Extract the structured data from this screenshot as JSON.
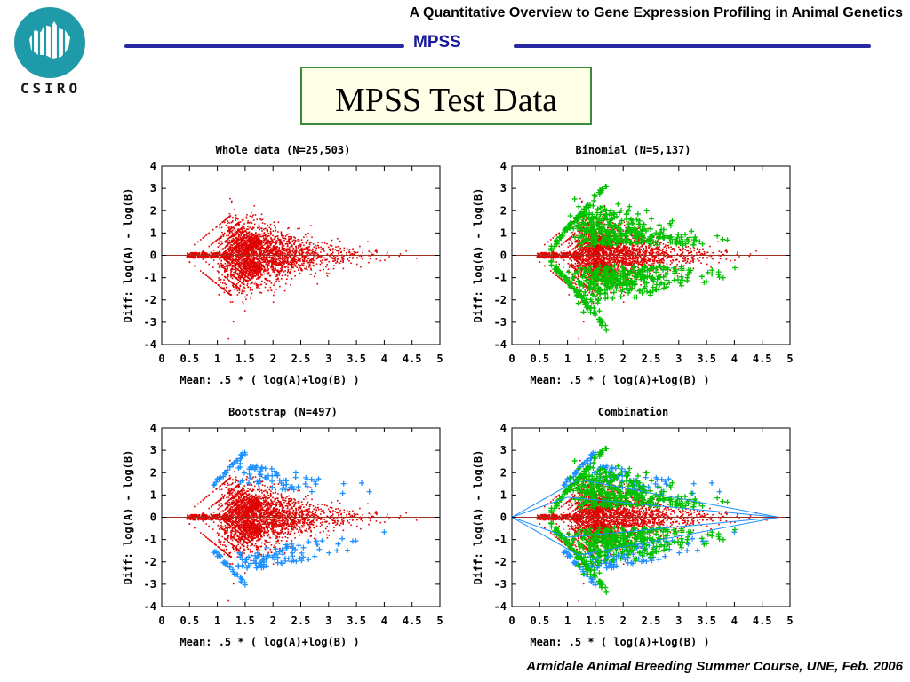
{
  "header": {
    "course_title": "A Quantitative Overview to Gene Expression Profiling in Animal Genetics",
    "section": "MPSS"
  },
  "logo": {
    "text": "CSIRO"
  },
  "slide": {
    "title": "MPSS Test Data"
  },
  "footer": {
    "text": "Armidale Animal Breeding Summer Course, UNE, Feb. 2006"
  },
  "colors": {
    "red": "#e00000",
    "green": "#00c000",
    "blue": "#1e90ff",
    "axis_line": "#a03020",
    "rule": "#2a2aa0",
    "title_border": "#3a8a3a"
  },
  "chart_data": [
    {
      "type": "scatter",
      "title": "Whole data (N=25,503)",
      "xlabel": "Mean: .5 * ( log(A)+log(B) )",
      "ylabel": "Diff: log(A) - log(B)",
      "xlim": [
        0,
        5
      ],
      "ylim": [
        -4,
        4
      ],
      "xticks": [
        "0",
        "0.5",
        "1",
        "1.5",
        "2",
        "2.5",
        "3",
        "3.5",
        "4",
        "4.5",
        "5"
      ],
      "yticks": [
        "4",
        "3",
        "2",
        "1",
        "0",
        "-1",
        "-2",
        "-3",
        "-4"
      ],
      "hline": 0,
      "layers": [
        "red"
      ]
    },
    {
      "type": "scatter",
      "title": "Binomial (N=5,137)",
      "xlabel": "Mean: .5 * ( log(A)+log(B) )",
      "ylabel": "Diff: log(A) - log(B)",
      "xlim": [
        0,
        5
      ],
      "ylim": [
        -4,
        4
      ],
      "xticks": [
        "0",
        "0.5",
        "1",
        "1.5",
        "2",
        "2.5",
        "3",
        "3.5",
        "4",
        "4.5",
        "5"
      ],
      "yticks": [
        "4",
        "3",
        "2",
        "1",
        "0",
        "-1",
        "-2",
        "-3",
        "-4"
      ],
      "hline": 0,
      "layers": [
        "red",
        "green"
      ]
    },
    {
      "type": "scatter",
      "title": "Bootstrap (N=497)",
      "xlabel": "Mean: .5 * ( log(A)+log(B) )",
      "ylabel": "Diff: log(A) - log(B)",
      "xlim": [
        0,
        5
      ],
      "ylim": [
        -4,
        4
      ],
      "xticks": [
        "0",
        "0.5",
        "1",
        "1.5",
        "2",
        "2.5",
        "3",
        "3.5",
        "4",
        "4.5",
        "5"
      ],
      "yticks": [
        "4",
        "3",
        "2",
        "1",
        "0",
        "-1",
        "-2",
        "-3",
        "-4"
      ],
      "hline": 0,
      "layers": [
        "red",
        "blue"
      ]
    },
    {
      "type": "scatter",
      "title": "Combination",
      "xlabel": "Mean: .5 * ( log(A)+log(B) )",
      "ylabel": "Diff: log(A) - log(B)",
      "xlim": [
        0,
        5
      ],
      "ylim": [
        -4,
        4
      ],
      "xticks": [
        "0",
        "0.5",
        "1",
        "1.5",
        "2",
        "2.5",
        "3",
        "3.5",
        "4",
        "4.5",
        "5"
      ],
      "yticks": [
        "4",
        "3",
        "2",
        "1",
        "0",
        "-1",
        "-2",
        "-3",
        "-4"
      ],
      "hline": 0,
      "layers": [
        "red",
        "blue",
        "green"
      ]
    }
  ]
}
